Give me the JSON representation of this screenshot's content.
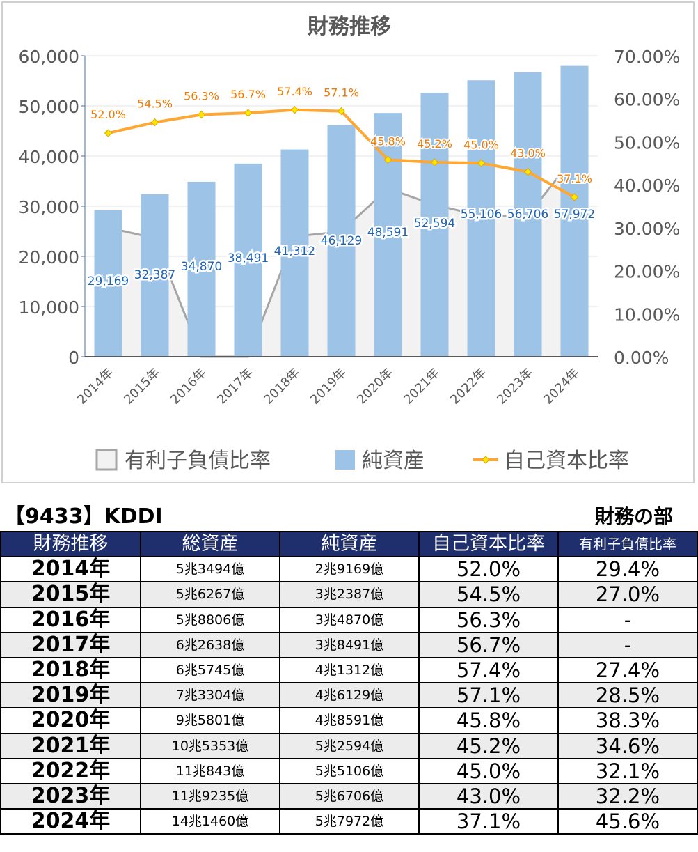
{
  "chart_data": {
    "type": "bar",
    "title": "財務推移",
    "categories": [
      "2014年",
      "2015年",
      "2016年",
      "2017年",
      "2018年",
      "2019年",
      "2020年",
      "2021年",
      "2022年",
      "2023年",
      "2024年"
    ],
    "y_left": {
      "min": 0,
      "max": 60000,
      "ticks": [
        "0",
        "10,000",
        "20,000",
        "30,000",
        "40,000",
        "50,000",
        "60,000"
      ]
    },
    "y_right": {
      "min": 0,
      "max": 70,
      "ticks": [
        "0.00%",
        "10.00%",
        "20.00%",
        "30.00%",
        "40.00%",
        "50.00%",
        "60.00%",
        "70.00%"
      ]
    },
    "series": [
      {
        "name": "有利子負債比率",
        "type": "area",
        "axis": "left",
        "color": "#a6a6a6",
        "fill": "#f2f2f2",
        "values": [
          25726,
          23625,
          0,
          0,
          23975,
          24938,
          33513,
          30275,
          28088,
          28175,
          39900
        ]
      },
      {
        "name": "純資産",
        "type": "bar",
        "axis": "left",
        "color": "#9dc3e6",
        "values": [
          29169,
          32387,
          34870,
          38491,
          41312,
          46129,
          48591,
          52594,
          55106,
          56706,
          57972
        ],
        "labels": [
          "29,169",
          "32,387",
          "34,870",
          "38,491",
          "41,312",
          "46,129",
          "48,591",
          "52,594",
          "55,106",
          "56,706",
          "57,972"
        ]
      },
      {
        "name": "自己資本比率",
        "type": "line",
        "axis": "right",
        "color": "#ffa733",
        "values": [
          52.0,
          54.5,
          56.3,
          56.7,
          57.4,
          57.1,
          45.8,
          45.2,
          45.0,
          43.0,
          37.1
        ],
        "labels": [
          "52.0%",
          "54.5%",
          "56.3%",
          "56.7%",
          "57.4%",
          "57.1%",
          "45.8%",
          "45.2%",
          "45.0%",
          "43.0%",
          "37.1%"
        ]
      }
    ],
    "legend": {
      "position": "bottom",
      "items": [
        "有利子負債比率",
        "純資産",
        "自己資本比率"
      ]
    }
  },
  "table": {
    "company": "【9433】KDDI",
    "section": "財務の部",
    "headers": [
      "財務推移",
      "総資産",
      "純資産",
      "自己資本比率",
      "有利子負債比率"
    ],
    "rows": [
      [
        "2014年",
        "5兆3494億",
        "2兆9169億",
        "52.0%",
        "29.4%"
      ],
      [
        "2015年",
        "5兆6267億",
        "3兆2387億",
        "54.5%",
        "27.0%"
      ],
      [
        "2016年",
        "5兆8806億",
        "3兆4870億",
        "56.3%",
        "-"
      ],
      [
        "2017年",
        "6兆2638億",
        "3兆8491億",
        "56.7%",
        "-"
      ],
      [
        "2018年",
        "6兆5745億",
        "4兆1312億",
        "57.4%",
        "27.4%"
      ],
      [
        "2019年",
        "7兆3304億",
        "4兆6129億",
        "57.1%",
        "28.5%"
      ],
      [
        "2020年",
        "9兆5801億",
        "4兆8591億",
        "45.8%",
        "38.3%"
      ],
      [
        "2021年",
        "10兆5353億",
        "5兆2594億",
        "45.2%",
        "34.6%"
      ],
      [
        "2022年",
        "11兆843億",
        "5兆5106億",
        "45.0%",
        "32.1%"
      ],
      [
        "2023年",
        "11兆9235億",
        "5兆6706億",
        "43.0%",
        "32.2%"
      ],
      [
        "2024年",
        "14兆1460億",
        "5兆7972億",
        "37.1%",
        "45.6%"
      ]
    ]
  }
}
